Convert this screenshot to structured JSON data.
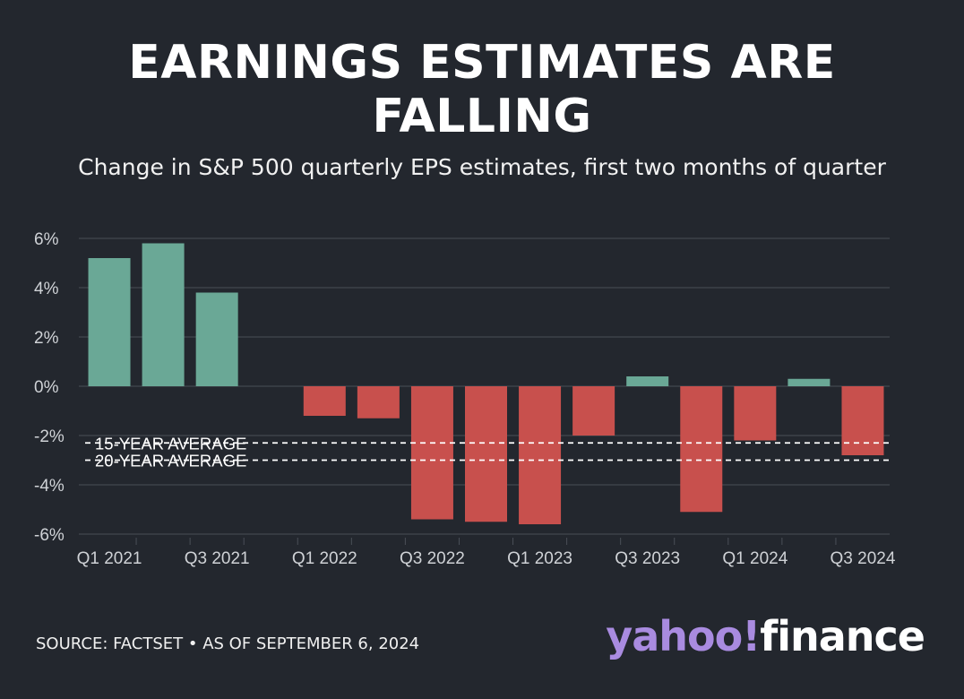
{
  "title_line1": "EARNINGS ESTIMATES ARE",
  "title_line2": "FALLING",
  "subtitle": "Change in S&P 500 quarterly EPS estimates, first two months of quarter",
  "footer": "SOURCE: FACTSET • AS OF SEPTEMBER 6, 2024",
  "logo": {
    "yahoo": "yahoo!",
    "finance": "finance"
  },
  "colors": {
    "background": "#23272e",
    "positive": "#6aa896",
    "negative": "#c8504d",
    "grid": "#4a4f57",
    "text": "#cfd2d6"
  },
  "chart_data": {
    "type": "bar",
    "categories": [
      "Q1 2021",
      "Q2 2021",
      "Q3 2021",
      "Q4 2021",
      "Q1 2022",
      "Q2 2022",
      "Q3 2022",
      "Q4 2022",
      "Q1 2023",
      "Q2 2023",
      "Q3 2023",
      "Q4 2023",
      "Q1 2024",
      "Q2 2024",
      "Q3 2024"
    ],
    "tick_labels": [
      "Q1 2021",
      "",
      "Q3 2021",
      "",
      "Q1 2022",
      "",
      "Q3 2022",
      "",
      "Q1 2023",
      "",
      "Q3 2023",
      "",
      "Q1 2024",
      "",
      "Q3 2024"
    ],
    "values": [
      5.2,
      5.8,
      3.8,
      null,
      -1.2,
      -1.3,
      -5.4,
      -5.5,
      -5.6,
      -2.0,
      0.4,
      -5.1,
      -2.2,
      0.3,
      -2.8
    ],
    "ylim": [
      -6,
      6
    ],
    "yticks": [
      6,
      4,
      2,
      0,
      -2,
      -4,
      -6
    ],
    "ytick_labels": [
      "6%",
      "4%",
      "2%",
      "0%",
      "-2%",
      "-4%",
      "-6%"
    ],
    "grid": true,
    "reference_lines": [
      {
        "label": "15-YEAR AVERAGE",
        "value": -2.3
      },
      {
        "label": "20-YEAR AVERAGE",
        "value": -3.0
      }
    ]
  }
}
